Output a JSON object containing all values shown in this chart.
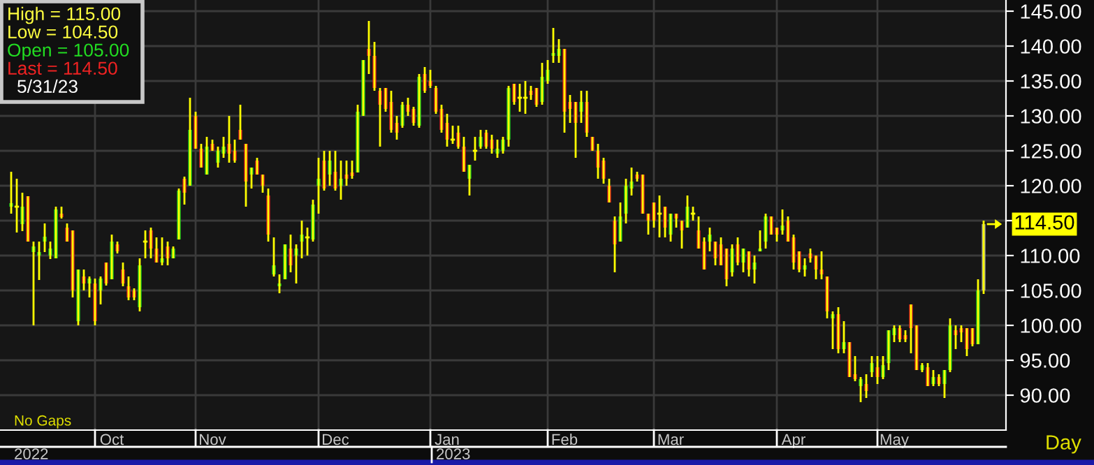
{
  "chart_data": {
    "type": "candlestick",
    "categories": [
      null,
      null,
      null,
      null,
      null,
      null,
      null,
      null,
      null,
      null,
      null,
      null,
      null,
      null,
      null,
      null,
      null,
      null,
      "Oct",
      null,
      null,
      null,
      null,
      null,
      null,
      null,
      null,
      null,
      null,
      null,
      null,
      null,
      null,
      null,
      null,
      null,
      "Nov",
      null,
      null,
      null,
      null,
      null,
      null,
      null,
      null,
      null,
      null,
      null,
      null,
      null,
      null,
      null,
      null,
      null,
      null,
      null,
      null,
      null,
      "Dec",
      null,
      null,
      null,
      null,
      null,
      null,
      null,
      null,
      null,
      null,
      null,
      null,
      null,
      null,
      null,
      null,
      null,
      null,
      null,
      "Jan",
      null,
      null,
      null,
      null,
      null,
      null,
      null,
      null,
      null,
      null,
      null,
      null,
      null,
      null,
      null,
      null,
      null,
      null,
      null,
      null,
      "Feb",
      null,
      null,
      null,
      null,
      null,
      null,
      null,
      null,
      null,
      null,
      null,
      null,
      null,
      null,
      null,
      null,
      null,
      null,
      "Mar",
      null,
      null,
      null,
      null,
      null,
      null,
      null,
      null,
      null,
      null,
      null,
      null,
      null,
      null,
      null,
      null,
      null,
      null,
      null,
      null,
      null,
      "Apr",
      null,
      null,
      null,
      null,
      null,
      null,
      null,
      null,
      null,
      null,
      null,
      null,
      null,
      null,
      null,
      null,
      null,
      "May",
      null,
      null,
      null,
      null,
      null,
      null,
      null,
      null,
      null,
      null,
      null,
      null,
      null,
      null,
      null,
      null
    ],
    "ohlc": [
      [
        117,
        122,
        116,
        117.5
      ],
      [
        117,
        121,
        113.3,
        117
      ],
      [
        114.5,
        119,
        113.5,
        117
      ],
      [
        118.5,
        118.5,
        112,
        112
      ],
      [
        110.5,
        112,
        100,
        111.3
      ],
      [
        110,
        112,
        106.5,
        110.5
      ],
      [
        112,
        114.6,
        110.5,
        112.7
      ],
      [
        110,
        112,
        109.5,
        111
      ],
      [
        109.6,
        117,
        109.6,
        116.6
      ],
      [
        116,
        117,
        115.3,
        115.5
      ],
      [
        114,
        114.6,
        112,
        112
      ],
      [
        113.6,
        113.6,
        104,
        105
      ],
      [
        100.6,
        108,
        100,
        108
      ],
      [
        107,
        108,
        105,
        106
      ],
      [
        106,
        107,
        104,
        106.7
      ],
      [
        106,
        106.7,
        100,
        100.6
      ],
      [
        105,
        107,
        103,
        106.7
      ],
      [
        109,
        109,
        105.7,
        106
      ],
      [
        106.6,
        113,
        106.6,
        112
      ],
      [
        111.6,
        112,
        110.3,
        110.6
      ],
      [
        108,
        109,
        105.6,
        106
      ],
      [
        105.6,
        107,
        103.6,
        104
      ],
      [
        105,
        105.3,
        103.6,
        104
      ],
      [
        102.6,
        109.6,
        102,
        108.6
      ],
      [
        112,
        113.6,
        109.6,
        112
      ],
      [
        113.6,
        114,
        109.6,
        111
      ],
      [
        111,
        112.6,
        109,
        109
      ],
      [
        109,
        112.6,
        108.6,
        109.6
      ],
      [
        111.3,
        112,
        108.6,
        109.6
      ],
      [
        109.6,
        111.3,
        109.6,
        111
      ],
      [
        112.3,
        119.6,
        112.3,
        119.3
      ],
      [
        121,
        121.3,
        117.3,
        119
      ],
      [
        120,
        132.6,
        120,
        128
      ],
      [
        130,
        130.6,
        125.3,
        125.3
      ],
      [
        125.3,
        126,
        122.6,
        122.6
      ],
      [
        121.6,
        127,
        121.6,
        125.6
      ],
      [
        126,
        126.6,
        125,
        125
      ],
      [
        123.3,
        125.6,
        122.6,
        125
      ],
      [
        124.6,
        127,
        124,
        125.6
      ],
      [
        126,
        130,
        123.3,
        124.6
      ],
      [
        125,
        126.6,
        123.3,
        123.6
      ],
      [
        128,
        131.6,
        126.6,
        126.6
      ],
      [
        126,
        126,
        117,
        120.6
      ],
      [
        121.6,
        122.6,
        119.6,
        122.6
      ],
      [
        123.6,
        124,
        121.6,
        121.6
      ],
      [
        121.6,
        121.6,
        119,
        120
      ],
      [
        118.6,
        119.6,
        112,
        113
      ],
      [
        107.3,
        112.6,
        107,
        108.6
      ],
      [
        105.6,
        107.3,
        104.6,
        106
      ],
      [
        106.6,
        111.6,
        106.6,
        111.6
      ],
      [
        111,
        113,
        107.6,
        108.6
      ],
      [
        110,
        111.6,
        106,
        111
      ],
      [
        112,
        115,
        109.6,
        113
      ],
      [
        112.6,
        114,
        110,
        112.6
      ],
      [
        112.3,
        118,
        112,
        117.3
      ],
      [
        120,
        124,
        116,
        121
      ],
      [
        123.6,
        125,
        119.3,
        119.6
      ],
      [
        121.6,
        125,
        120,
        123.6
      ],
      [
        122,
        125,
        119.3,
        119.6
      ],
      [
        120,
        123.6,
        118,
        121
      ],
      [
        121.6,
        123.6,
        120,
        121
      ],
      [
        121.9,
        123.6,
        121,
        121.4
      ],
      [
        121.9,
        131.6,
        121.9,
        130.6
      ],
      [
        130,
        138,
        130,
        138
      ],
      [
        139.6,
        143.6,
        136,
        138.6
      ],
      [
        138.6,
        140.6,
        133.6,
        134
      ],
      [
        133.6,
        134,
        125.6,
        131.6
      ],
      [
        134,
        134,
        130.6,
        131
      ],
      [
        132,
        133.6,
        127.6,
        128
      ],
      [
        129,
        130,
        126.6,
        127.6
      ],
      [
        128.6,
        132,
        128.3,
        131.6
      ],
      [
        131.6,
        132.6,
        130,
        130.6
      ],
      [
        131,
        131.3,
        128.6,
        129
      ],
      [
        128.6,
        136,
        128.3,
        135.6
      ],
      [
        136,
        137,
        133.3,
        133.6
      ],
      [
        135,
        136.6,
        134,
        134.3
      ],
      [
        134,
        134.3,
        130.3,
        130.6
      ],
      [
        131,
        131.6,
        127.6,
        128
      ],
      [
        129,
        130.3,
        125.6,
        126.6
      ],
      [
        126.6,
        128.6,
        126,
        126.6
      ],
      [
        127.6,
        128.6,
        125.3,
        125.6
      ],
      [
        125.6,
        127,
        122,
        122
      ],
      [
        121,
        123,
        118.6,
        123
      ],
      [
        125,
        127,
        123.6,
        125
      ],
      [
        125.6,
        128,
        125.3,
        127
      ],
      [
        127.6,
        128,
        125.3,
        125.6
      ],
      [
        126.6,
        127.3,
        124.6,
        125.3
      ],
      [
        124.6,
        126.6,
        124,
        125.3
      ],
      [
        125,
        127,
        124.6,
        126.6
      ],
      [
        126.6,
        134.3,
        125.6,
        134
      ],
      [
        134.6,
        134.6,
        131.6,
        132
      ],
      [
        132.6,
        134.6,
        130.6,
        132.6
      ],
      [
        132.6,
        135,
        130.3,
        132.6
      ],
      [
        133.6,
        134.3,
        132.3,
        133
      ],
      [
        134,
        134,
        131.3,
        131.6
      ],
      [
        132,
        137.6,
        131.6,
        135.6
      ],
      [
        135,
        138,
        134.6,
        136.6
      ],
      [
        138.6,
        142.6,
        137.6,
        139
      ],
      [
        138.6,
        141,
        137.6,
        139.6
      ],
      [
        139.6,
        139.6,
        127.6,
        130.6
      ],
      [
        132,
        133,
        129,
        131
      ],
      [
        132,
        132,
        124,
        129
      ],
      [
        130.6,
        133.6,
        129,
        132
      ],
      [
        132,
        133.6,
        127,
        127.6
      ],
      [
        127,
        127,
        125,
        125
      ],
      [
        125,
        126,
        121,
        122.6
      ],
      [
        123.6,
        124,
        120.3,
        121
      ],
      [
        120,
        121,
        117.6,
        117.6
      ],
      [
        115,
        115.6,
        107.6,
        111.6
      ],
      [
        112,
        117.6,
        112,
        115.6
      ],
      [
        116,
        121,
        114.6,
        120
      ],
      [
        119.6,
        122.6,
        118.6,
        120.6
      ],
      [
        121.6,
        122,
        120.6,
        121
      ],
      [
        121.6,
        121.6,
        116,
        116
      ],
      [
        116,
        116,
        113,
        115
      ],
      [
        117.6,
        117.6,
        114,
        115
      ],
      [
        116,
        118.6,
        112.6,
        116
      ],
      [
        117,
        117,
        112.6,
        114
      ],
      [
        113,
        116,
        112,
        116
      ],
      [
        116,
        116,
        114,
        115.3
      ],
      [
        115,
        115,
        111,
        113.6
      ],
      [
        114,
        118.6,
        114,
        117
      ],
      [
        116,
        117,
        115,
        116
      ],
      [
        113.6,
        115.6,
        111,
        111
      ],
      [
        112,
        112.6,
        108,
        108
      ],
      [
        112,
        114,
        110.6,
        113
      ],
      [
        112,
        112,
        108.6,
        109.6
      ],
      [
        111.6,
        112.6,
        108.6,
        108.6
      ],
      [
        111,
        111,
        105.6,
        106.6
      ],
      [
        107.6,
        111.6,
        107,
        111
      ],
      [
        111.6,
        112.6,
        108.6,
        109
      ],
      [
        109,
        111,
        107.6,
        111
      ],
      [
        110.6,
        110.6,
        107,
        108
      ],
      [
        108,
        110,
        106,
        109
      ],
      [
        110.6,
        113.6,
        110.6,
        111
      ],
      [
        112,
        116,
        111,
        115.6
      ],
      [
        115.6,
        115.6,
        113,
        113
      ],
      [
        114,
        114,
        112,
        113
      ],
      [
        113.6,
        116.6,
        113,
        114.3
      ],
      [
        115,
        115.6,
        112,
        112
      ],
      [
        112.6,
        113,
        108,
        109
      ],
      [
        110.6,
        110.6,
        107.6,
        108
      ],
      [
        108,
        109.6,
        107,
        108.6
      ],
      [
        110.3,
        111,
        109,
        109.6
      ],
      [
        110,
        110,
        106.6,
        108
      ],
      [
        108,
        110.6,
        106.6,
        107.3
      ],
      [
        107,
        107,
        101,
        102
      ],
      [
        101,
        102,
        96.6,
        101.6
      ],
      [
        101.6,
        102.6,
        96,
        96.6
      ],
      [
        96.6,
        100.6,
        96,
        97.6
      ],
      [
        97.6,
        97.6,
        92.6,
        92.6
      ],
      [
        93,
        95.6,
        92,
        92.3
      ],
      [
        91.3,
        92.6,
        89,
        92.3
      ],
      [
        91.6,
        93,
        89.6,
        90.6
      ],
      [
        93.3,
        95.6,
        92.6,
        94.6
      ],
      [
        94,
        95.6,
        91.6,
        92.6
      ],
      [
        92.6,
        95.6,
        92.3,
        94.3
      ],
      [
        94.6,
        99.3,
        93.6,
        99.3
      ],
      [
        98.6,
        100,
        97.6,
        99.6
      ],
      [
        99.6,
        100,
        97.6,
        98
      ],
      [
        98.6,
        99.3,
        97.6,
        98
      ],
      [
        103,
        103,
        96,
        99.6
      ],
      [
        100,
        100,
        93.6,
        93.6
      ],
      [
        93.6,
        94.6,
        93.3,
        94.3
      ],
      [
        94,
        94.6,
        91.3,
        91.3
      ],
      [
        91.6,
        93.6,
        91.3,
        92.6
      ],
      [
        92.6,
        93,
        91.3,
        91.6
      ],
      [
        91.6,
        93.6,
        89.6,
        93.6
      ],
      [
        93.6,
        101,
        93.3,
        100
      ],
      [
        99.3,
        100,
        96.6,
        98.6
      ],
      [
        99.6,
        100,
        97.6,
        99
      ],
      [
        99.6,
        99.6,
        95.6,
        96.6
      ],
      [
        99.6,
        99.6,
        97,
        97.3
      ],
      [
        97.3,
        106.6,
        97.3,
        105
      ],
      [
        105,
        115,
        104.5,
        114.5
      ]
    ],
    "colors": [
      "#1ed21e",
      "#ffff00",
      "#1ed21e",
      "#e62020",
      "#1ed21e",
      "#1ed21e",
      "#1ed21e",
      "#1ed21e",
      "#1ed21e",
      "#e62020",
      "#e62020",
      "#e62020",
      "#1ed21e",
      "#e62020",
      "#1ed21e",
      "#e62020",
      "#1ed21e",
      "#e62020",
      "#1ed21e",
      "#e62020",
      "#e62020",
      "#e62020",
      "#e62020",
      "#1ed21e",
      "#ffff00",
      "#e62020",
      "#e62020",
      "#1ed21e",
      "#e62020",
      "#1ed21e",
      "#1ed21e",
      "#e62020",
      "#1ed21e",
      "#e62020",
      "#e62020",
      "#1ed21e",
      "#e62020",
      "#1ed21e",
      "#1ed21e",
      "#e62020",
      "#e62020",
      "#e62020",
      "#e62020",
      "#1ed21e",
      "#e62020",
      "#e62020",
      "#e62020",
      "#1ed21e",
      "#1ed21e",
      "#1ed21e",
      "#e62020",
      "#1ed21e",
      "#1ed21e",
      "#ffff00",
      "#1ed21e",
      "#1ed21e",
      "#e62020",
      "#1ed21e",
      "#e62020",
      "#1ed21e",
      "#e62020",
      "#e62020",
      "#1ed21e",
      "#1ed21e",
      "#e62020",
      "#e62020",
      "#e62020",
      "#e62020",
      "#e62020",
      "#e62020",
      "#1ed21e",
      "#e62020",
      "#e62020",
      "#1ed21e",
      "#e62020",
      "#e62020",
      "#e62020",
      "#e62020",
      "#e62020",
      "#ffff00",
      "#e62020",
      "#e62020",
      "#1ed21e",
      "#ffff00",
      "#1ed21e",
      "#e62020",
      "#e62020",
      "#1ed21e",
      "#1ed21e",
      "#1ed21e",
      "#e62020",
      "#ffff00",
      "#ffff00",
      "#e62020",
      "#e62020",
      "#1ed21e",
      "#1ed21e",
      "#1ed21e",
      "#1ed21e",
      "#e62020",
      "#e62020",
      "#e62020",
      "#1ed21e",
      "#e62020",
      "#e62020",
      "#e62020",
      "#e62020",
      "#e62020",
      "#e62020",
      "#1ed21e",
      "#1ed21e",
      "#1ed21e",
      "#e62020",
      "#e62020",
      "#e62020",
      "#e62020",
      "#ffff00",
      "#e62020",
      "#1ed21e",
      "#e62020",
      "#e62020",
      "#1ed21e",
      "#ffff00",
      "#e62020",
      "#e62020",
      "#1ed21e",
      "#e62020",
      "#e62020",
      "#e62020",
      "#1ed21e",
      "#e62020",
      "#1ed21e",
      "#e62020",
      "#1ed21e",
      "#1ed21e",
      "#1ed21e",
      "#e62020",
      "#e62020",
      "#1ed21e",
      "#e62020",
      "#e62020",
      "#e62020",
      "#1ed21e",
      "#e62020",
      "#e62020",
      "#e62020",
      "#e62020",
      "#1ed21e",
      "#e62020",
      "#1ed21e",
      "#e62020",
      "#e62020",
      "#1ed21e",
      "#e62020",
      "#1ed21e",
      "#e62020",
      "#1ed21e",
      "#1ed21e",
      "#1ed21e",
      "#e62020",
      "#e62020",
      "#e62020",
      "#e62020",
      "#1ed21e",
      "#e62020",
      "#1ed21e",
      "#e62020",
      "#1ed21e",
      "#1ed21e",
      "#e62020",
      "#e62020",
      "#e62020",
      "#e62020",
      "#1ed21e",
      "#9a9a9a"
    ],
    "ylim": [
      85,
      146.6
    ],
    "yticks": [
      {
        "value": 90,
        "label": "90.00"
      },
      {
        "value": 95,
        "label": "95.00"
      },
      {
        "value": 100,
        "label": "100.00"
      },
      {
        "value": 105,
        "label": "105.00"
      },
      {
        "value": 110,
        "label": "110.00"
      },
      {
        "value": 115,
        "label": null
      },
      {
        "value": 120,
        "label": "120.00"
      },
      {
        "value": 125,
        "label": "125.00"
      },
      {
        "value": 130,
        "label": "130.00"
      },
      {
        "value": 135,
        "label": "135.00"
      },
      {
        "value": 140,
        "label": "140.00"
      },
      {
        "value": 145,
        "label": "145.00"
      }
    ],
    "ref_lines": [
      {
        "axis": "y",
        "value": 114.5,
        "label": "114.50",
        "color": "#ffff00"
      }
    ],
    "grid": true,
    "annotations": [
      "High = 115.00",
      "Low = 104.50",
      "Open = 105.00",
      "Last = 114.50",
      "5/31/23",
      "No Gaps",
      "Day",
      "2022",
      "2023"
    ]
  }
}
